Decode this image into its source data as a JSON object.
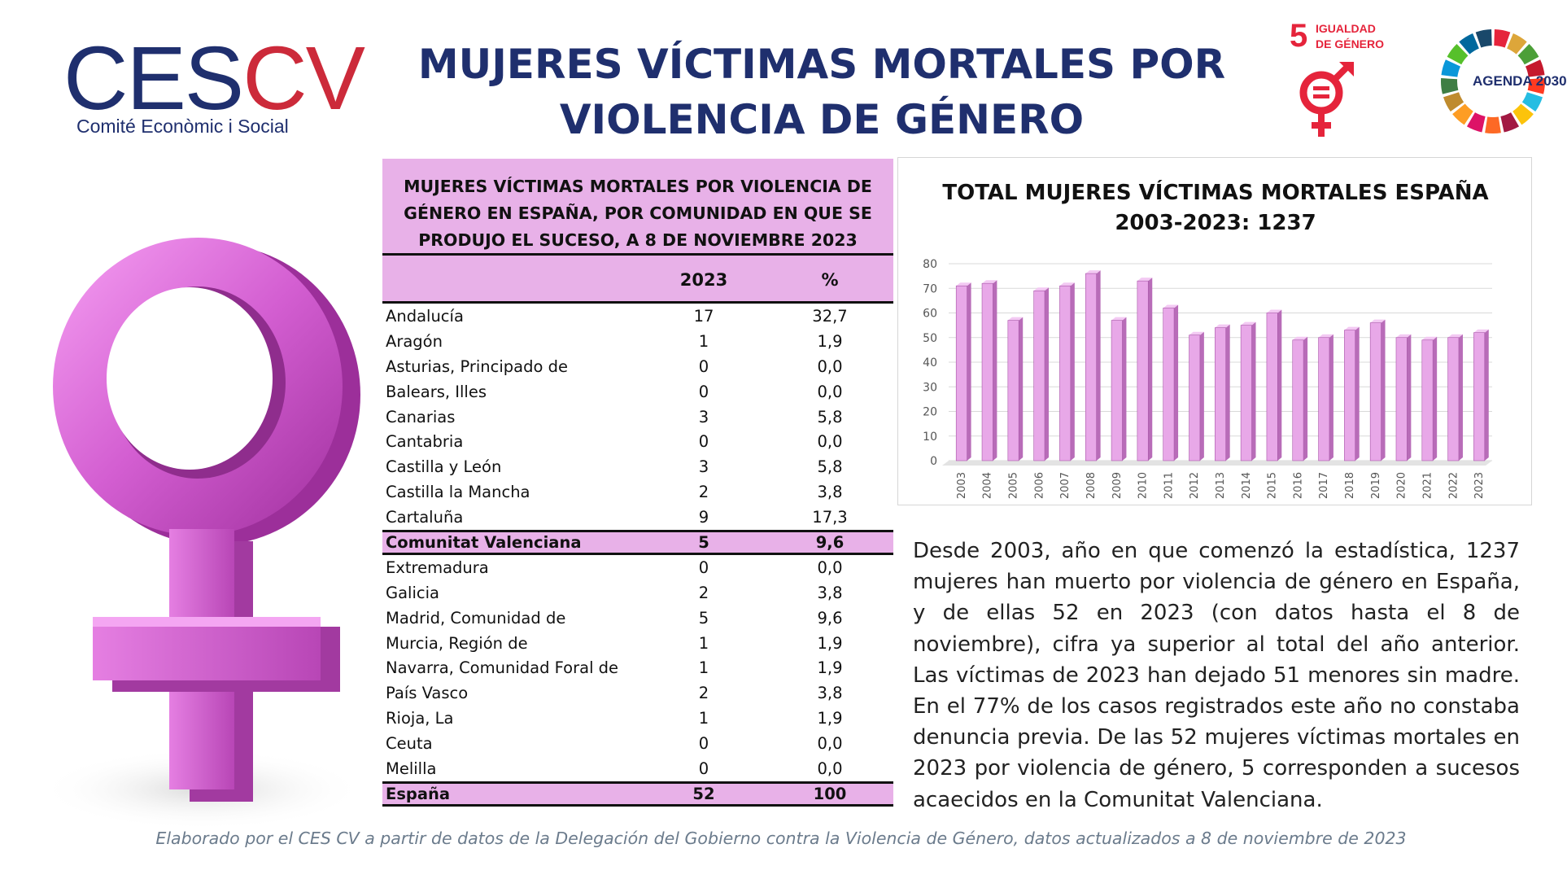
{
  "logo": {
    "ces": "CES",
    "cv": "CV",
    "subtitle": "Comité Econòmic i Social"
  },
  "title": {
    "line1": "MUJERES VÍCTIMAS MORTALES POR",
    "line2": "VIOLENCIA DE GÉNERO"
  },
  "sdg": {
    "number": "5",
    "label_line1": "IGUALDAD",
    "label_line2": "DE GÉNERO",
    "color": "#e5243b"
  },
  "agenda": {
    "label": "AGENDA 2030"
  },
  "table": {
    "caption": [
      "MUJERES VÍCTIMAS MORTALES POR VIOLENCIA DE",
      "GÉNERO EN ESPAÑA, POR COMUNIDAD EN QUE SE",
      "PRODUJO EL SUCESO, A 8 DE NOVIEMBRE 2023"
    ],
    "headers": {
      "year": "2023",
      "pct": "%"
    },
    "rows": [
      {
        "name": "Andalucía",
        "value": "17",
        "pct": "32,7"
      },
      {
        "name": "Aragón",
        "value": "1",
        "pct": "1,9"
      },
      {
        "name": "Asturias, Principado de",
        "value": "0",
        "pct": "0,0"
      },
      {
        "name": "Balears, Illes",
        "value": "0",
        "pct": "0,0"
      },
      {
        "name": "Canarias",
        "value": "3",
        "pct": "5,8"
      },
      {
        "name": "Cantabria",
        "value": "0",
        "pct": "0,0"
      },
      {
        "name": "Castilla y León",
        "value": "3",
        "pct": "5,8"
      },
      {
        "name": "Castilla la Mancha",
        "value": "2",
        "pct": "3,8"
      },
      {
        "name": "Cartaluña",
        "value": "9",
        "pct": "17,3"
      },
      {
        "name": "Comunitat Valenciana",
        "value": "5",
        "pct": "9,6",
        "highlight": true
      },
      {
        "name": "Extremadura",
        "value": "0",
        "pct": "0,0"
      },
      {
        "name": "Galicia",
        "value": "2",
        "pct": "3,8"
      },
      {
        "name": "Madrid, Comunidad de",
        "value": "5",
        "pct": "9,6"
      },
      {
        "name": "Murcia, Región de",
        "value": "1",
        "pct": "1,9"
      },
      {
        "name": "Navarra, Comunidad Foral de",
        "value": "1",
        "pct": "1,9"
      },
      {
        "name": "País Vasco",
        "value": "2",
        "pct": "3,8"
      },
      {
        "name": "Rioja, La",
        "value": "1",
        "pct": "1,9"
      },
      {
        "name": "Ceuta",
        "value": "0",
        "pct": "0,0"
      },
      {
        "name": "Melilla",
        "value": "0",
        "pct": "0,0"
      },
      {
        "name": "España",
        "value": "52",
        "pct": "100",
        "highlight": true,
        "total": true
      }
    ]
  },
  "chart_data": {
    "type": "bar",
    "title_line1": "TOTAL MUJERES VÍCTIMAS MORTALES ESPAÑA",
    "title_line2": "2003-2023: 1237",
    "categories": [
      "2003",
      "2004",
      "2005",
      "2006",
      "2007",
      "2008",
      "2009",
      "2010",
      "2011",
      "2012",
      "2013",
      "2014",
      "2015",
      "2016",
      "2017",
      "2018",
      "2019",
      "2020",
      "2021",
      "2022",
      "2023"
    ],
    "values": [
      71,
      72,
      57,
      69,
      71,
      76,
      57,
      73,
      62,
      51,
      54,
      55,
      60,
      49,
      50,
      53,
      56,
      50,
      49,
      50,
      52
    ],
    "ylim": [
      0,
      80
    ],
    "yticks": [
      0,
      10,
      20,
      30,
      40,
      50,
      60,
      70,
      80
    ],
    "grid": true,
    "bar_color": "#e8a8e8"
  },
  "description": "Desde 2003, año en que comenzó la estadística, 1237 mujeres han muerto por violencia de género en España, y de ellas 52 en 2023 (con datos hasta el 8 de noviembre), cifra ya superior al total del año anterior. Las víctimas de 2023 han dejado 51 menores sin madre. En el 77% de los casos registrados este año no constaba denuncia previa. De las 52 mujeres víctimas mortales en 2023 por violencia de género, 5 corresponden a sucesos acaecidos en la Comunitat Valenciana.",
  "source": "Elaborado por el CES CV a partir de datos de la Delegación del Gobierno contra la Violencia de Género, datos actualizados a 8 de noviembre de 2023"
}
